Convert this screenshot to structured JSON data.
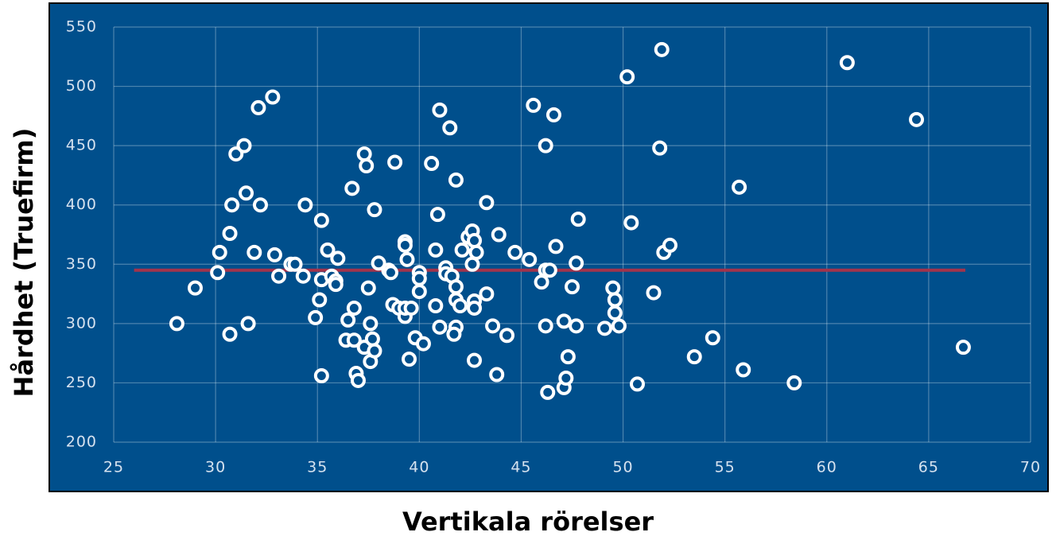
{
  "chart_data": {
    "type": "scatter",
    "xlabel": "Vertikala rörelser",
    "ylabel": "Hårdhet (Truefirm)",
    "x": [
      28.1,
      29.0,
      30.1,
      30.2,
      30.7,
      30.8,
      30.7,
      31.0,
      31.4,
      31.5,
      31.6,
      31.9,
      32.1,
      32.2,
      32.8,
      32.9,
      33.1,
      33.7,
      33.9,
      34.3,
      34.4,
      35.2,
      34.9,
      35.1,
      35.2,
      35.2,
      35.5,
      35.7,
      35.9,
      35.9,
      36.0,
      36.4,
      36.5,
      36.7,
      36.8,
      36.8,
      36.9,
      37.0,
      37.3,
      37.4,
      37.3,
      37.5,
      37.6,
      37.7,
      37.6,
      37.8,
      37.8,
      38.0,
      38.5,
      38.6,
      38.7,
      38.8,
      39.0,
      39.3,
      39.3,
      39.4,
      39.3,
      39.3,
      39.6,
      39.5,
      39.8,
      40.0,
      40.0,
      40.0,
      40.2,
      40.6,
      40.8,
      40.8,
      40.9,
      41.0,
      41.0,
      41.3,
      41.3,
      41.5,
      41.6,
      41.8,
      41.8,
      41.8,
      41.7,
      41.8,
      42.0,
      42.1,
      42.4,
      42.6,
      42.7,
      42.8,
      42.6,
      42.7,
      42.7,
      42.7,
      43.3,
      43.3,
      43.6,
      43.8,
      43.9,
      44.3,
      44.7,
      45.4,
      45.6,
      46.0,
      46.2,
      46.2,
      46.2,
      46.3,
      46.4,
      46.6,
      46.7,
      47.1,
      47.1,
      47.2,
      47.3,
      47.5,
      47.7,
      47.7,
      47.8,
      49.1,
      49.5,
      49.6,
      49.6,
      49.8,
      50.2,
      50.4,
      50.7,
      51.5,
      51.8,
      51.9,
      52.0,
      52.3,
      53.5,
      54.4,
      55.7,
      55.9,
      58.4,
      61.0,
      64.4,
      66.7
    ],
    "values": [
      300,
      330,
      343,
      360,
      376,
      400,
      291,
      443,
      450,
      410,
      300,
      360,
      482,
      400,
      491,
      358,
      340,
      350,
      350,
      340,
      400,
      387,
      305,
      320,
      337,
      256,
      362,
      340,
      336,
      333,
      355,
      286,
      303,
      414,
      313,
      286,
      258,
      252,
      443,
      433,
      280,
      330,
      300,
      287,
      268,
      277,
      396,
      351,
      345,
      343,
      316,
      436,
      313,
      369,
      366,
      354,
      306,
      313,
      313,
      270,
      288,
      343,
      338,
      327,
      283,
      435,
      362,
      315,
      392,
      480,
      297,
      347,
      342,
      465,
      340,
      331,
      421,
      297,
      291,
      320,
      315,
      362,
      373,
      378,
      370,
      360,
      350,
      319,
      313,
      269,
      325,
      402,
      298,
      257,
      375,
      290,
      360,
      354,
      484,
      335,
      345,
      450,
      298,
      242,
      345,
      476,
      365,
      302,
      246,
      254,
      272,
      331,
      298,
      351,
      388,
      296,
      330,
      320,
      309,
      298,
      508,
      385,
      249,
      326,
      448,
      531,
      360,
      366,
      272,
      288,
      415,
      261,
      250,
      520,
      472,
      280
    ],
    "color": "#ffffff",
    "background": "#004f8c",
    "trend": {
      "x": [
        26,
        66.8
      ],
      "values": [
        345,
        345
      ],
      "color": "#a3334b"
    },
    "xlim": [
      25,
      70
    ],
    "xticks": [
      25,
      30,
      35,
      40,
      45,
      50,
      55,
      60,
      65,
      70
    ],
    "ylim": [
      200,
      550
    ],
    "yticks": [
      200,
      250,
      300,
      350,
      400,
      450,
      500,
      550
    ],
    "grid": true
  }
}
